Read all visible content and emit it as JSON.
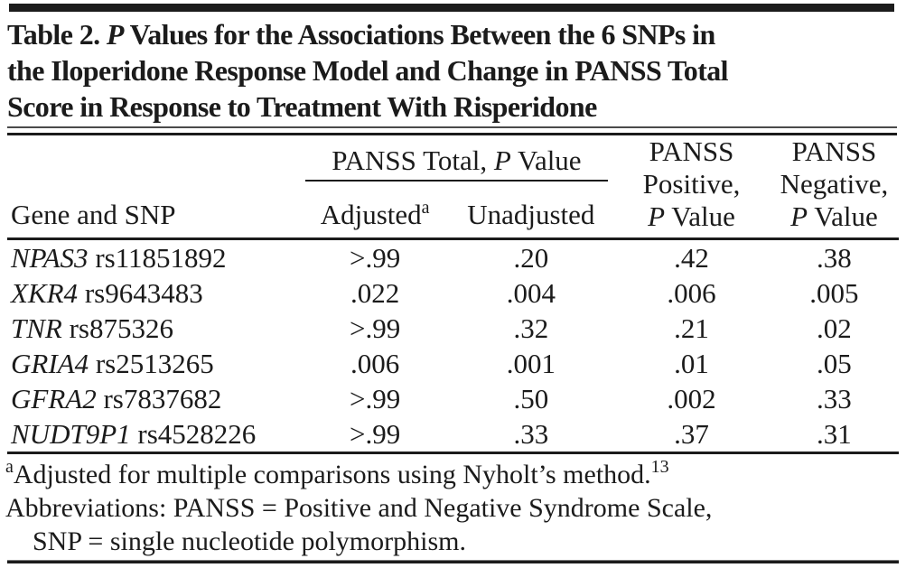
{
  "colors": {
    "background": "#ffffff",
    "text": "#1b1b1b",
    "rule": "#1b1b1b"
  },
  "title": {
    "line1_pre": "Table 2. ",
    "line1_italic": "P",
    "line1_post": " Values for the Associations Between the 6 SNPs in",
    "line2": "the Iloperidone Response Model and Change in PANSS Total",
    "line3": "Score in Response to Treatment With Risperidone"
  },
  "header": {
    "gene_col": "Gene and SNP",
    "spanner_pre": "PANSS Total, ",
    "spanner_italic": "P",
    "spanner_post": " Value",
    "adjusted": "Adjusted",
    "adjusted_sup": "a",
    "unadjusted": "Unadjusted",
    "positive": {
      "line1": "PANSS",
      "line2": "Positive,",
      "p_italic": "P",
      "p_post": " Value"
    },
    "negative": {
      "line1": "PANSS",
      "line2": "Negative,",
      "p_italic": "P",
      "p_post": " Value"
    }
  },
  "rows": [
    {
      "gene": "NPAS3",
      "snp": "rs11851892",
      "adjusted": ">.99",
      "unadjusted": ".20",
      "positive": ".42",
      "negative": ".38"
    },
    {
      "gene": "XKR4",
      "snp": "rs9643483",
      "adjusted": ".022",
      "unadjusted": ".004",
      "positive": ".006",
      "negative": ".005"
    },
    {
      "gene": "TNR",
      "snp": "rs875326",
      "adjusted": ">.99",
      "unadjusted": ".32",
      "positive": ".21",
      "negative": ".02"
    },
    {
      "gene": "GRIA4",
      "snp": "rs2513265",
      "adjusted": ".006",
      "unadjusted": ".001",
      "positive": ".01",
      "negative": ".05"
    },
    {
      "gene": "GFRA2",
      "snp": "rs7837682",
      "adjusted": ">.99",
      "unadjusted": ".50",
      "positive": ".002",
      "negative": ".33"
    },
    {
      "gene": "NUDT9P1",
      "snp": "rs4528226",
      "adjusted": ">.99",
      "unadjusted": ".33",
      "positive": ".37",
      "negative": ".31"
    }
  ],
  "footnotes": {
    "a_sup": "a",
    "a_text": "Adjusted for multiple comparisons using Nyholt’s method.",
    "a_ref": "13",
    "abbr_line1": "Abbreviations: PANSS = Positive and Negative Syndrome Scale,",
    "abbr_line2": "SNP = single nucleotide polymorphism."
  }
}
